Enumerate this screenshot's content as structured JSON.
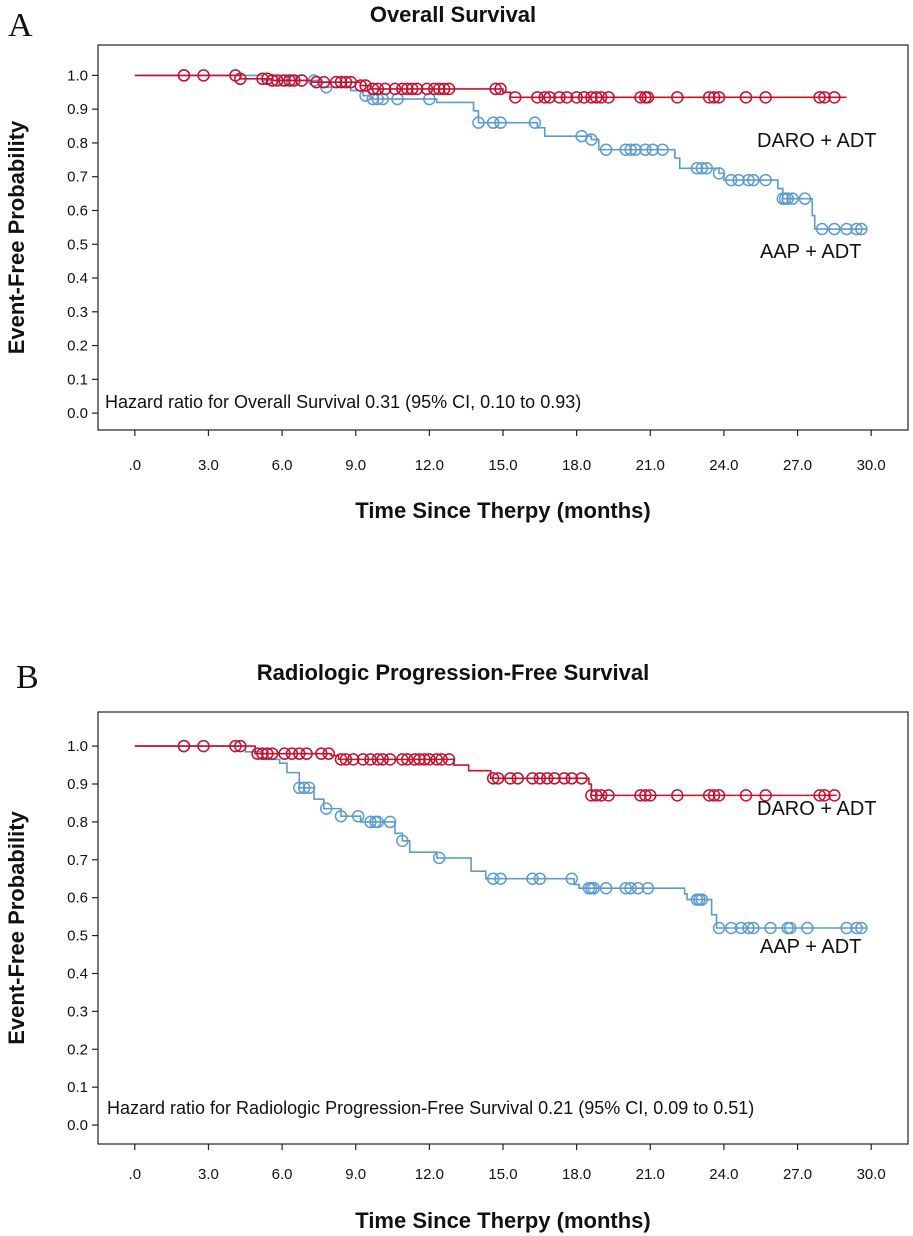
{
  "chart_data": [
    {
      "type": "line",
      "panel_letter": "A",
      "title": "Overall Survival",
      "xlabel": "Time Since Therpy (months)",
      "ylabel": "Event-Free Probability",
      "xlim": [
        -1.5,
        31.5
      ],
      "ylim": [
        -0.05,
        1.09
      ],
      "x_ticks": [
        0,
        3,
        6,
        9,
        12,
        15,
        18,
        21,
        24,
        27,
        30
      ],
      "x_tick_labels": [
        ".0",
        "3.0",
        "6.0",
        "9.0",
        "12.0",
        "15.0",
        "18.0",
        "21.0",
        "24.0",
        "27.0",
        "30.0"
      ],
      "y_ticks": [
        0,
        0.1,
        0.2,
        0.3,
        0.4,
        0.5,
        0.6,
        0.7,
        0.8,
        0.9,
        1.0
      ],
      "y_tick_labels": [
        "0.0",
        "0.1",
        "0.2",
        "0.3",
        "0.4",
        "0.5",
        "0.6",
        "0.7",
        "0.8",
        "0.9",
        "1.0"
      ],
      "annotation": "Hazard ratio for Overall Survival 0.31 (95% CI, 0.10 to 0.93)",
      "series": [
        {
          "name": "DARO + ADT",
          "color": "#c8102e",
          "steps": [
            [
              0,
              1.0
            ],
            [
              4.3,
              0.99
            ],
            [
              5.6,
              0.985
            ],
            [
              7.2,
              0.98
            ],
            [
              9.2,
              0.97
            ],
            [
              9.6,
              0.96
            ],
            [
              15.0,
              0.95
            ],
            [
              15.3,
              0.935
            ],
            [
              29.0,
              0.935
            ]
          ],
          "censored": [
            2.0,
            2.8,
            4.1,
            4.3,
            5.2,
            5.4,
            5.6,
            5.8,
            6.1,
            6.3,
            6.5,
            6.8,
            7.4,
            7.7,
            8.2,
            8.4,
            8.6,
            8.8,
            9.2,
            9.4,
            9.7,
            9.9,
            10.2,
            10.6,
            10.9,
            11.1,
            11.3,
            11.5,
            11.9,
            12.2,
            12.4,
            12.6,
            12.8,
            14.7,
            14.9,
            15.5,
            16.4,
            16.7,
            16.9,
            17.3,
            17.6,
            18.0,
            18.3,
            18.6,
            18.8,
            19.0,
            19.3,
            20.6,
            20.8,
            20.9,
            22.1,
            23.4,
            23.6,
            23.8,
            24.9,
            25.7,
            27.9,
            28.1,
            28.5
          ]
        },
        {
          "name": "AAP + ADT",
          "color": "#5b9bd5",
          "steps": [
            [
              0,
              1.0
            ],
            [
              5.2,
              0.985
            ],
            [
              7.6,
              0.965
            ],
            [
              8.8,
              0.955
            ],
            [
              9.3,
              0.94
            ],
            [
              9.6,
              0.93
            ],
            [
              12.3,
              0.92
            ],
            [
              13.8,
              0.895
            ],
            [
              14.0,
              0.86
            ],
            [
              16.4,
              0.845
            ],
            [
              16.7,
              0.82
            ],
            [
              18.6,
              0.81
            ],
            [
              18.9,
              0.78
            ],
            [
              22.0,
              0.755
            ],
            [
              22.2,
              0.725
            ],
            [
              23.8,
              0.71
            ],
            [
              24.0,
              0.69
            ],
            [
              26.2,
              0.665
            ],
            [
              26.4,
              0.635
            ],
            [
              27.6,
              0.585
            ],
            [
              27.7,
              0.545
            ],
            [
              29.8,
              0.545
            ]
          ],
          "censored": [
            2.0,
            5.6,
            6.0,
            6.4,
            6.8,
            7.3,
            7.8,
            9.4,
            9.7,
            9.9,
            10.1,
            10.7,
            12.0,
            14.0,
            14.6,
            14.9,
            16.3,
            18.2,
            18.6,
            19.2,
            20.0,
            20.2,
            20.4,
            20.8,
            21.1,
            21.5,
            22.9,
            23.1,
            23.3,
            23.8,
            24.3,
            24.6,
            25.0,
            25.2,
            25.7,
            26.4,
            26.5,
            26.6,
            26.8,
            27.3,
            28.0,
            28.5,
            29.0,
            29.4,
            29.6
          ]
        }
      ]
    },
    {
      "type": "line",
      "panel_letter": "B",
      "title": "Radiologic Progression-Free Survival",
      "xlabel": "Time Since Therpy (months)",
      "ylabel": "Event-Free Probability",
      "xlim": [
        -1.5,
        31.5
      ],
      "ylim": [
        -0.05,
        1.09
      ],
      "x_ticks": [
        0,
        3,
        6,
        9,
        12,
        15,
        18,
        21,
        24,
        27,
        30
      ],
      "x_tick_labels": [
        ".0",
        "3.0",
        "6.0",
        "9.0",
        "12.0",
        "15.0",
        "18.0",
        "21.0",
        "24.0",
        "27.0",
        "30.0"
      ],
      "y_ticks": [
        0,
        0.1,
        0.2,
        0.3,
        0.4,
        0.5,
        0.6,
        0.7,
        0.8,
        0.9,
        1.0
      ],
      "y_tick_labels": [
        "0.0",
        "0.1",
        "0.2",
        "0.3",
        "0.4",
        "0.5",
        "0.6",
        "0.7",
        "0.8",
        "0.9",
        "1.0"
      ],
      "annotation": "Hazard ratio for Radiologic Progression-Free Survival 0.21 (95% CI, 0.09 to 0.51)",
      "series": [
        {
          "name": "DARO + ADT",
          "color": "#c8102e",
          "steps": [
            [
              0,
              1.0
            ],
            [
              4.9,
              0.98
            ],
            [
              8.0,
              0.975
            ],
            [
              8.3,
              0.965
            ],
            [
              13.0,
              0.95
            ],
            [
              13.6,
              0.935
            ],
            [
              14.5,
              0.915
            ],
            [
              18.5,
              0.9
            ],
            [
              18.6,
              0.87
            ],
            [
              28.6,
              0.87
            ]
          ],
          "censored": [
            2.0,
            2.8,
            4.1,
            4.3,
            5.0,
            5.2,
            5.4,
            5.6,
            6.1,
            6.4,
            6.7,
            7.0,
            7.6,
            7.9,
            8.4,
            8.6,
            8.9,
            9.3,
            9.6,
            9.9,
            10.1,
            10.4,
            10.9,
            11.1,
            11.4,
            11.6,
            11.8,
            12.0,
            12.3,
            12.5,
            12.8,
            14.6,
            14.8,
            15.3,
            15.6,
            16.2,
            16.5,
            16.8,
            17.1,
            17.5,
            17.8,
            18.2,
            18.6,
            18.8,
            19.0,
            19.3,
            20.6,
            20.8,
            21.0,
            22.1,
            23.4,
            23.6,
            23.8,
            24.9,
            25.7,
            27.9,
            28.1,
            28.5
          ]
        },
        {
          "name": "AAP + ADT",
          "color": "#5b9bd5",
          "steps": [
            [
              0,
              1.0
            ],
            [
              4.5,
              0.985
            ],
            [
              5.2,
              0.965
            ],
            [
              5.9,
              0.955
            ],
            [
              6.2,
              0.93
            ],
            [
              6.7,
              0.89
            ],
            [
              7.3,
              0.86
            ],
            [
              7.7,
              0.835
            ],
            [
              8.4,
              0.815
            ],
            [
              9.2,
              0.8
            ],
            [
              10.6,
              0.77
            ],
            [
              10.9,
              0.75
            ],
            [
              11.2,
              0.72
            ],
            [
              12.3,
              0.705
            ],
            [
              13.7,
              0.67
            ],
            [
              14.3,
              0.65
            ],
            [
              17.9,
              0.635
            ],
            [
              18.1,
              0.625
            ],
            [
              22.4,
              0.61
            ],
            [
              22.5,
              0.595
            ],
            [
              23.5,
              0.555
            ],
            [
              23.7,
              0.52
            ],
            [
              29.8,
              0.52
            ]
          ],
          "censored": [
            2.0,
            6.7,
            6.9,
            7.1,
            7.8,
            8.4,
            9.1,
            9.6,
            9.8,
            9.9,
            10.4,
            10.9,
            12.4,
            14.6,
            14.9,
            16.2,
            16.5,
            17.8,
            18.5,
            18.6,
            18.7,
            19.2,
            20.0,
            20.2,
            20.5,
            20.9,
            22.9,
            23.0,
            23.1,
            23.8,
            24.3,
            24.7,
            25.0,
            25.2,
            25.9,
            26.6,
            26.7,
            27.4,
            29.0,
            29.4,
            29.6
          ]
        }
      ]
    }
  ]
}
